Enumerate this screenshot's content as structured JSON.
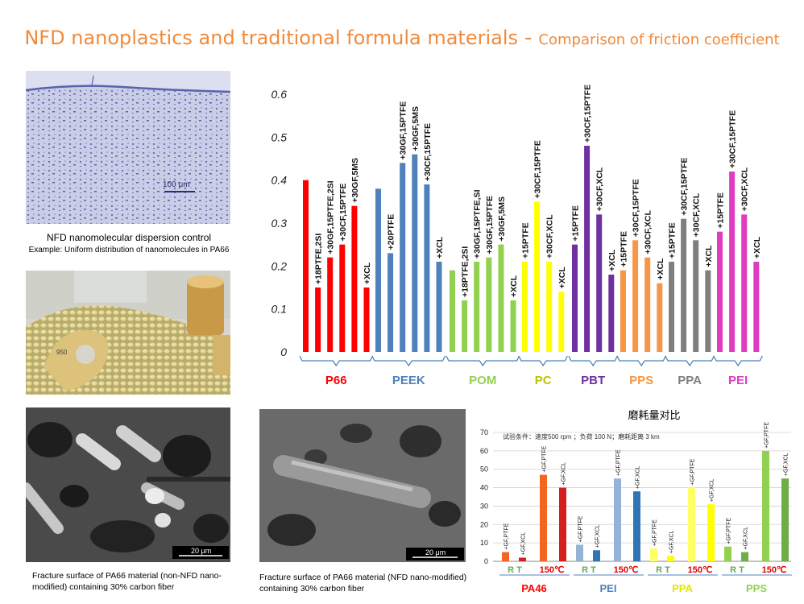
{
  "title": {
    "main": "NFD nanoplastics and traditional formula materials",
    "separator": "-",
    "sub": "Comparison of friction coefficient"
  },
  "photos": {
    "micrograph": {
      "scale_label": "100 μm",
      "caption_line1": "NFD nanomolecular dispersion control",
      "caption_line2": "Example: Uniform distribution of nanomolecules in PA66"
    },
    "pellets": {
      "part_label": "950"
    },
    "sem_left": {
      "scale_label": "20 μm",
      "caption": "Fracture surface of PA66 material (non-NFD nano-modified) containing 30% carbon fiber"
    },
    "sem_right": {
      "scale_label": "20 μm",
      "caption": "Fracture surface of PA66 material (NFD nano-modified) containing 30% carbon fiber"
    }
  },
  "colors": {
    "P66": "#ff0000",
    "PEEK": "#4f81bd",
    "POM": "#92d050",
    "PC": "#ffff00",
    "PBT": "#7030a0",
    "PPS": "#f79646",
    "PPA": "#7f7f7f",
    "PEI": "#e03cc0",
    "bracket": "#4f81bd",
    "title_orange": "#f28a3a"
  },
  "chart_data": [
    {
      "type": "bar",
      "title": "",
      "ylim": [
        0,
        0.6
      ],
      "yticks": [
        "0",
        "0.1",
        "0.2",
        "0.3",
        "0.4",
        "0.5",
        "0.6"
      ],
      "grid": false,
      "groups": [
        {
          "name": "P66",
          "color": "#ff0000",
          "bars": [
            {
              "label": "",
              "value": 0.4
            },
            {
              "label": "+18PTFE,2SI",
              "value": 0.15
            },
            {
              "label": "+30GF,15PTFE,2SI",
              "value": 0.22
            },
            {
              "label": "+30CF,15PTFE",
              "value": 0.25
            },
            {
              "label": "+30GF,5MS",
              "value": 0.34
            },
            {
              "label": "+XCL",
              "value": 0.15
            }
          ]
        },
        {
          "name": "PEEK",
          "color": "#4f81bd",
          "bars": [
            {
              "label": "",
              "value": 0.38
            },
            {
              "label": "+20PTFE",
              "value": 0.23
            },
            {
              "label": "+30GF,15PTFE",
              "value": 0.44
            },
            {
              "label": "+30GF,5MS",
              "value": 0.46
            },
            {
              "label": "+30CF,15PTFE",
              "value": 0.39
            },
            {
              "label": "+XCL",
              "value": 0.21
            }
          ]
        },
        {
          "name": "POM",
          "color": "#92d050",
          "bars": [
            {
              "label": "",
              "value": 0.19
            },
            {
              "label": "+18PTFE,2SI",
              "value": 0.12
            },
            {
              "label": "+30GF,15PTFE,SI",
              "value": 0.21
            },
            {
              "label": "+30GF,15PTFE",
              "value": 0.22
            },
            {
              "label": "+30GF,5MS",
              "value": 0.25
            },
            {
              "label": "+XCL",
              "value": 0.12
            }
          ]
        },
        {
          "name": "PC",
          "color": "#ffff00",
          "bars": [
            {
              "label": "+15PTFE",
              "value": 0.21
            },
            {
              "label": "+30CF,15PTFE",
              "value": 0.35
            },
            {
              "label": "+30CF,XCL",
              "value": 0.21
            },
            {
              "label": "+XCL",
              "value": 0.14
            }
          ]
        },
        {
          "name": "PBT",
          "color": "#7030a0",
          "bars": [
            {
              "label": "+15PTFE",
              "value": 0.25
            },
            {
              "label": "+30CF,15PTFE",
              "value": 0.48
            },
            {
              "label": "+30CF,XCL",
              "value": 0.32
            },
            {
              "label": "+XCL",
              "value": 0.18
            }
          ]
        },
        {
          "name": "PPS",
          "color": "#f79646",
          "bars": [
            {
              "label": "+15PTFE",
              "value": 0.19
            },
            {
              "label": "+30CF,15PTFE",
              "value": 0.26
            },
            {
              "label": "+30CF,XCL",
              "value": 0.22
            },
            {
              "label": "+XCL",
              "value": 0.16
            }
          ]
        },
        {
          "name": "PPA",
          "color": "#7f7f7f",
          "bars": [
            {
              "label": "+15PTFE",
              "value": 0.21
            },
            {
              "label": "+30CF,15PTFE",
              "value": 0.31
            },
            {
              "label": "+30CF,XCL",
              "value": 0.26
            },
            {
              "label": "+XCL",
              "value": 0.19
            }
          ]
        },
        {
          "name": "PEI",
          "color": "#e03cc0",
          "bars": [
            {
              "label": "+15PTFE",
              "value": 0.28
            },
            {
              "label": "+30CF,15PTFE",
              "value": 0.42
            },
            {
              "label": "+30CF,XCL",
              "value": 0.32
            },
            {
              "label": "+XCL",
              "value": 0.21
            }
          ]
        }
      ]
    },
    {
      "type": "bar",
      "title": "磨耗量对比",
      "subtitle": "试验条件：速度500 rpm ；负荷 100 N；磨耗距离 3 km",
      "ylim": [
        0,
        70
      ],
      "yticks": [
        "0",
        "10",
        "20",
        "30",
        "40",
        "50",
        "60",
        "70"
      ],
      "grid": true,
      "groups": [
        {
          "name": "PA46",
          "name_color": "#ff0000",
          "label_rt": "R T",
          "label_hot": "150℃",
          "bars": [
            {
              "label": "+GF,PTFE",
              "value": 5,
              "color": "#f26522"
            },
            {
              "label": "+GF,XCL",
              "value": 2,
              "color": "#d62020"
            },
            {
              "label": "+GF,PTFE",
              "value": 47,
              "color": "#f26522"
            },
            {
              "label": "+GF,XCL",
              "value": 40,
              "color": "#d62020"
            }
          ]
        },
        {
          "name": "PEI",
          "name_color": "#4f81bd",
          "label_rt": "R T",
          "label_hot": "150℃",
          "bars": [
            {
              "label": "+GF,PTFE",
              "value": 9,
              "color": "#95b3d7"
            },
            {
              "label": "+GF,XCL",
              "value": 6,
              "color": "#2e75b6"
            },
            {
              "label": "+GF,PTFE",
              "value": 45,
              "color": "#95b3d7"
            },
            {
              "label": "+GF,XCL",
              "value": 38,
              "color": "#2e75b6"
            }
          ]
        },
        {
          "name": "PPA",
          "name_color": "#ffff00",
          "label_rt": "R T",
          "label_hot": "150℃",
          "bars": [
            {
              "label": "+GF,PTFE",
              "value": 7,
              "color": "#ffff66"
            },
            {
              "label": "+GF,XCL",
              "value": 3,
              "color": "#ffff00"
            },
            {
              "label": "+GF,PTFE",
              "value": 40,
              "color": "#ffff66"
            },
            {
              "label": "+GF,XCL",
              "value": 31,
              "color": "#ffff00"
            }
          ]
        },
        {
          "name": "PPS",
          "name_color": "#92d050",
          "label_rt": "R T",
          "label_hot": "150℃",
          "bars": [
            {
              "label": "+GF,PTFE",
              "value": 8,
              "color": "#92d050"
            },
            {
              "label": "+GF,XCL",
              "value": 5,
              "color": "#70ad47"
            },
            {
              "label": "+GF,PTFE",
              "value": 60,
              "color": "#92d050"
            },
            {
              "label": "+GF,XCL",
              "value": 45,
              "color": "#70ad47"
            }
          ]
        }
      ]
    }
  ]
}
